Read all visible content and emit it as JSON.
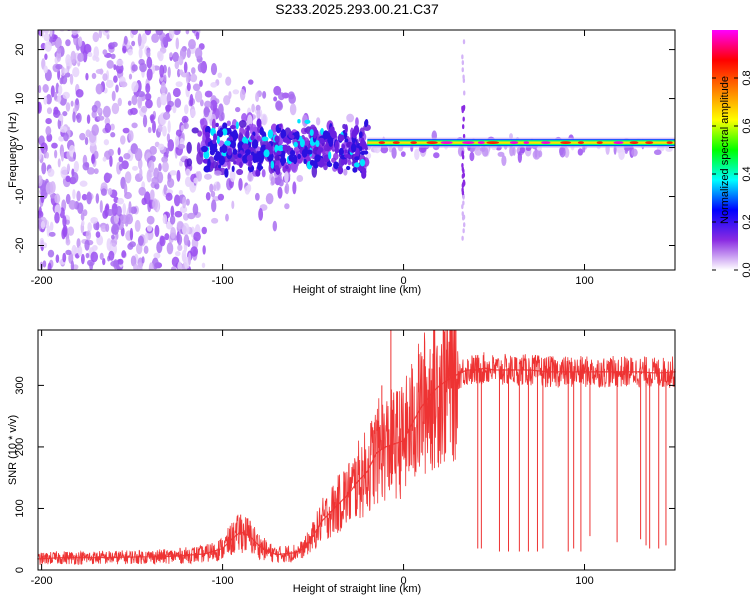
{
  "chart_data": [
    {
      "type": "heatmap",
      "title": "S233.2025.293.00.21.C37",
      "xlabel": "Height of straight line (km)",
      "ylabel": "Frequency (Hz)",
      "xlim": [
        -202,
        150
      ],
      "ylim": [
        -25,
        24
      ],
      "xticks": [
        -200,
        -100,
        0,
        100
      ],
      "xtick_labels": [
        "-200",
        "-100",
        "0",
        "100"
      ],
      "yticks": [
        20,
        10,
        0,
        -10,
        -20
      ],
      "ytick_labels": [
        "20",
        "10",
        "0",
        "-10",
        "-20"
      ],
      "colorbar": {
        "label": "Normalized spectral amplitude",
        "range": [
          0,
          1
        ],
        "ticks": [
          0.0,
          0.2,
          0.4,
          0.6,
          0.8
        ],
        "tick_labels": [
          "0.0",
          "0.2",
          "0.4",
          "0.6",
          "0.8"
        ],
        "colors": [
          "#ffffff",
          "#8a2be2",
          "#0000ff",
          "#00ffff",
          "#00ff00",
          "#ffff00",
          "#ff8000",
          "#ff0000",
          "#ff00ff"
        ]
      },
      "ridge": {
        "description": "strong narrowband line near 1 Hz for heights above about -20 km",
        "frequency_hz": 1.0,
        "x_start": -20,
        "x_end": 150
      }
    },
    {
      "type": "line",
      "title": "",
      "xlabel": "Height of straight line (km)",
      "ylabel": "SNR (10 * v/v)",
      "xlim": [
        -202,
        150
      ],
      "ylim": [
        0,
        390
      ],
      "xticks": [
        -200,
        -100,
        0,
        100
      ],
      "xtick_labels": [
        "-200",
        "-100",
        "0",
        "100"
      ],
      "yticks": [
        0,
        100,
        200,
        300
      ],
      "ytick_labels": [
        "0",
        "100",
        "200",
        "300"
      ],
      "series": [
        {
          "name": "SNR",
          "color": "#ee3333",
          "x": [
            -202,
            -190,
            -170,
            -150,
            -130,
            -110,
            -100,
            -95,
            -90,
            -85,
            -80,
            -75,
            -70,
            -60,
            -55,
            -50,
            -45,
            -40,
            -35,
            -30,
            -25,
            -20,
            -15,
            -10,
            -5,
            0,
            5,
            10,
            15,
            20,
            25,
            30,
            35,
            40,
            45,
            50,
            60,
            70,
            80,
            90,
            100,
            110,
            120,
            130,
            140,
            150
          ],
          "values": [
            18,
            20,
            20,
            21,
            22,
            26,
            35,
            50,
            62,
            55,
            40,
            30,
            25,
            28,
            35,
            55,
            80,
            95,
            110,
            125,
            145,
            160,
            190,
            200,
            205,
            210,
            240,
            265,
            285,
            300,
            310,
            318,
            325,
            325,
            328,
            325,
            325,
            325,
            322,
            322,
            322,
            322,
            322,
            322,
            320,
            322
          ]
        }
      ],
      "spikes": [
        {
          "x": -7,
          "value": 390
        },
        {
          "x": -12,
          "value": 300
        },
        {
          "x": -33,
          "value": 160
        },
        {
          "x": -90,
          "value": 90
        }
      ],
      "dropouts": [
        {
          "x": 41,
          "value": 35
        },
        {
          "x": 43,
          "value": 35
        },
        {
          "x": 53,
          "value": 30
        },
        {
          "x": 58,
          "value": 30
        },
        {
          "x": 64,
          "value": 30
        },
        {
          "x": 69,
          "value": 30
        },
        {
          "x": 74,
          "value": 30
        },
        {
          "x": 77,
          "value": 35
        },
        {
          "x": 91,
          "value": 30
        },
        {
          "x": 94,
          "value": 35
        },
        {
          "x": 98,
          "value": 30
        },
        {
          "x": 103,
          "value": 55
        },
        {
          "x": 118,
          "value": 45
        },
        {
          "x": 131,
          "value": 50
        },
        {
          "x": 134,
          "value": 40
        },
        {
          "x": 136,
          "value": 35
        },
        {
          "x": 141,
          "value": 35
        },
        {
          "x": 145,
          "value": 40
        }
      ]
    }
  ]
}
